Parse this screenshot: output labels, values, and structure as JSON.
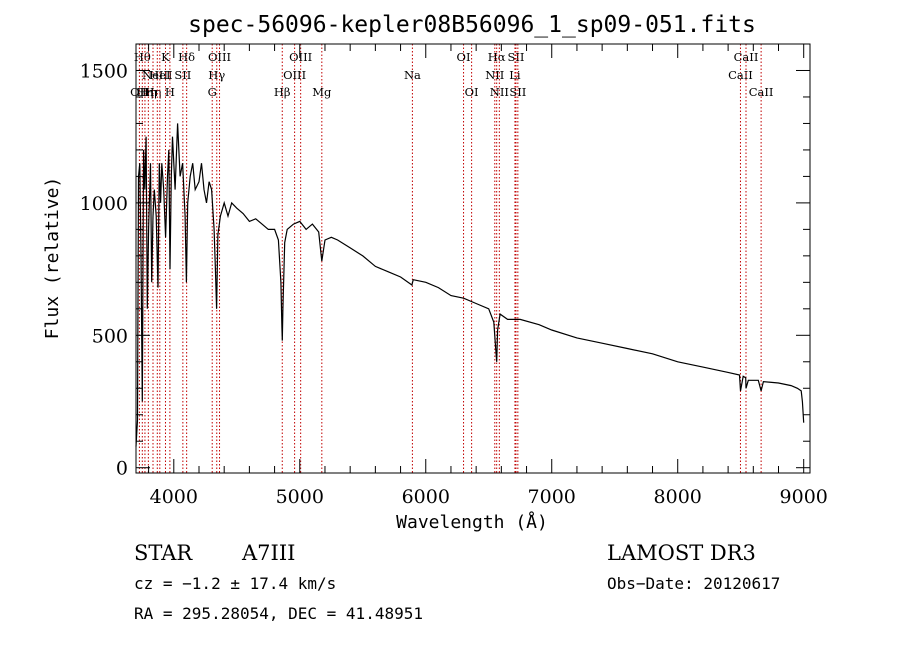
{
  "chart_data": {
    "type": "line",
    "title": "spec-56096-kepler08B56096_1_sp09-051.fits",
    "xlabel": "Wavelength (Å)",
    "ylabel": "Flux (relative)",
    "xlim": [
      3700,
      9050
    ],
    "ylim": [
      -20,
      1600
    ],
    "xticks": [
      4000,
      5000,
      6000,
      7000,
      8000,
      9000
    ],
    "yticks": [
      0,
      500,
      1000,
      1500
    ],
    "series": [
      {
        "name": "flux",
        "color": "#000000",
        "x": [
          3700,
          3712,
          3720,
          3730,
          3740,
          3750,
          3760,
          3770,
          3780,
          3790,
          3800,
          3815,
          3825,
          3835,
          3845,
          3860,
          3875,
          3885,
          3895,
          3905,
          3920,
          3935,
          3950,
          3960,
          3970,
          3980,
          3990,
          4010,
          4030,
          4050,
          4070,
          4090,
          4100,
          4110,
          4130,
          4150,
          4170,
          4200,
          4220,
          4240,
          4260,
          4280,
          4300,
          4320,
          4330,
          4340,
          4350,
          4370,
          4400,
          4430,
          4460,
          4500,
          4550,
          4600,
          4650,
          4700,
          4750,
          4800,
          4830,
          4850,
          4858,
          4861,
          4866,
          4880,
          4900,
          4950,
          5000,
          5050,
          5100,
          5150,
          5175,
          5200,
          5250,
          5300,
          5400,
          5500,
          5600,
          5700,
          5800,
          5890,
          5900,
          6000,
          6100,
          6200,
          6300,
          6400,
          6500,
          6540,
          6555,
          6563,
          6570,
          6590,
          6650,
          6750,
          6900,
          7000,
          7200,
          7400,
          7600,
          7800,
          8000,
          8200,
          8400,
          8490,
          8498,
          8520,
          8540,
          8542,
          8560,
          8640,
          8662,
          8680,
          8800,
          8900,
          8950,
          8980,
          8990,
          9000
        ],
        "values": [
          80,
          180,
          1100,
          1150,
          800,
          250,
          1200,
          1050,
          1250,
          600,
          900,
          1150,
          700,
          950,
          1050,
          950,
          680,
          1150,
          1000,
          1150,
          1050,
          870,
          1100,
          1200,
          750,
          1100,
          1250,
          1050,
          1300,
          1100,
          1150,
          950,
          700,
          1000,
          1100,
          1150,
          1050,
          1080,
          1150,
          1050,
          1000,
          1080,
          1050,
          900,
          750,
          600,
          880,
          950,
          1000,
          950,
          1000,
          980,
          960,
          930,
          940,
          920,
          900,
          900,
          860,
          700,
          530,
          480,
          600,
          850,
          900,
          920,
          930,
          900,
          920,
          890,
          780,
          860,
          870,
          860,
          830,
          800,
          760,
          740,
          720,
          690,
          710,
          700,
          680,
          650,
          640,
          620,
          600,
          550,
          450,
          400,
          520,
          580,
          560,
          560,
          540,
          520,
          490,
          470,
          450,
          430,
          400,
          380,
          360,
          350,
          290,
          345,
          340,
          300,
          330,
          330,
          290,
          325,
          320,
          310,
          300,
          290,
          250,
          170
        ]
      }
    ],
    "line_markers": [
      {
        "wavelength": 3727,
        "label": "OII",
        "row": 3
      },
      {
        "wavelength": 3750,
        "label": "Hθ",
        "row": 1
      },
      {
        "wavelength": 3771,
        "label": "Hη",
        "row": 3
      },
      {
        "wavelength": 3798,
        "label": "Hη",
        "row": 3
      },
      {
        "wavelength": 3835,
        "label": "Hη",
        "row": 3
      },
      {
        "wavelength": 3869,
        "label": "NeIII",
        "row": 2
      },
      {
        "wavelength": 3889,
        "label": "HeI",
        "row": 2
      },
      {
        "wavelength": 3934,
        "label": "K",
        "row": 1
      },
      {
        "wavelength": 3969,
        "label": "H",
        "row": 3
      },
      {
        "wavelength": 4072,
        "label": "SII",
        "row": 2
      },
      {
        "wavelength": 4102,
        "label": "Hδ",
        "row": 1
      },
      {
        "wavelength": 4305,
        "label": "G",
        "row": 3
      },
      {
        "wavelength": 4341,
        "label": "Hγ",
        "row": 2
      },
      {
        "wavelength": 4363,
        "label": "OIII",
        "row": 1
      },
      {
        "wavelength": 4861,
        "label": "Hβ",
        "row": 3
      },
      {
        "wavelength": 4959,
        "label": "OIII",
        "row": 2
      },
      {
        "wavelength": 5007,
        "label": "OIII",
        "row": 1
      },
      {
        "wavelength": 5175,
        "label": "Mg",
        "row": 3
      },
      {
        "wavelength": 5894,
        "label": "Na",
        "row": 2
      },
      {
        "wavelength": 6300,
        "label": "OI",
        "row": 1
      },
      {
        "wavelength": 6364,
        "label": "OI",
        "row": 3
      },
      {
        "wavelength": 6548,
        "label": "NII",
        "row": 2
      },
      {
        "wavelength": 6563,
        "label": "Hα",
        "row": 1
      },
      {
        "wavelength": 6584,
        "label": "NII",
        "row": 3
      },
      {
        "wavelength": 6708,
        "label": "Li",
        "row": 2
      },
      {
        "wavelength": 6716,
        "label": "SII",
        "row": 1
      },
      {
        "wavelength": 6731,
        "label": "SII",
        "row": 3
      },
      {
        "wavelength": 8498,
        "label": "CaII",
        "row": 2
      },
      {
        "wavelength": 8542,
        "label": "CaII",
        "row": 1
      },
      {
        "wavelength": 8662,
        "label": "CaII",
        "row": 3
      }
    ]
  },
  "info": {
    "object_class": "STAR",
    "subclass": "A7III",
    "survey": "LAMOST DR3",
    "redshift": "cz = −1.2 ± 17.4 km/s",
    "obs_date": "Obs−Date: 20120617",
    "coords": "RA = 295.28054, DEC =  41.48951"
  }
}
